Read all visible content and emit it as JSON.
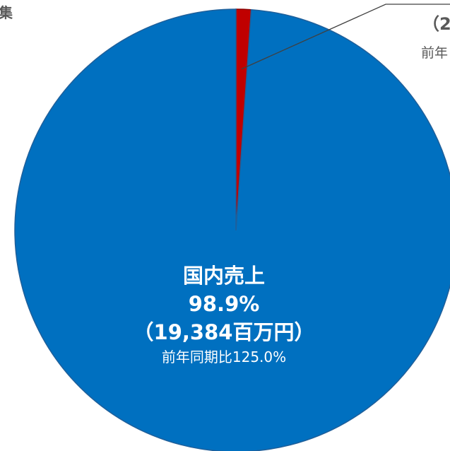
{
  "chart_data": {
    "type": "pie",
    "slices": [
      {
        "name": "国内売上",
        "percent": 98.9,
        "value_label": "（19,384百万円）",
        "yoy_label": "前年同期比125.0%",
        "color": "#0070C0"
      },
      {
        "name": "",
        "percent": 1.1,
        "color": "#C00000"
      }
    ],
    "fragments": {
      "corner": "集",
      "right_value": "（2",
      "right_yoy": "前年"
    }
  },
  "colors": {
    "background": "#FFFFFF",
    "domestic": "#0070C0",
    "overseas": "#C00000",
    "label_text": "#FFFFFF",
    "leader_line": "#404040"
  }
}
